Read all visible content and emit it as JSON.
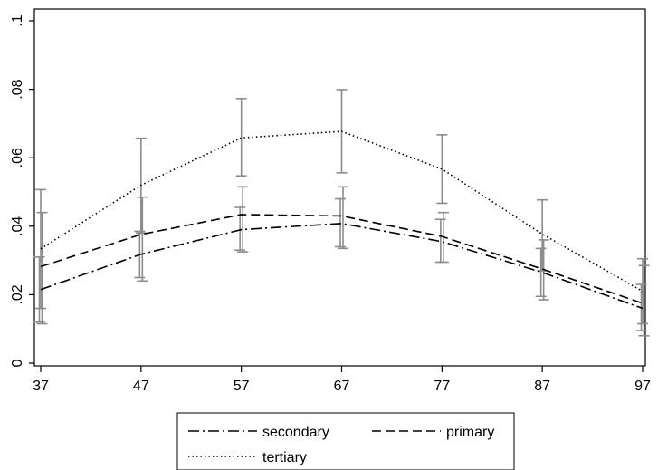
{
  "chart_data": {
    "type": "line",
    "title": "",
    "xlabel": "",
    "ylabel": "",
    "x": [
      37,
      47,
      57,
      67,
      77,
      87,
      97
    ],
    "x_tick_labels": [
      "37",
      "47",
      "57",
      "67",
      "77",
      "87",
      "97"
    ],
    "ylim": [
      0,
      0.1
    ],
    "y_ticks": [
      0,
      0.02,
      0.04,
      0.06,
      0.08,
      0.1
    ],
    "y_tick_labels": [
      "0",
      ".02",
      ".04",
      ".06",
      ".08",
      ".1"
    ],
    "grid": false,
    "legend_position": "bottom",
    "series": [
      {
        "name": "secondary",
        "line_style": "dash-dot",
        "values": [
          0.0215,
          0.0318,
          0.039,
          0.0408,
          0.0355,
          0.0265,
          0.016
        ],
        "ci_low": [
          0.012,
          0.025,
          0.033,
          0.034,
          0.0295,
          0.0195,
          0.0095
        ],
        "ci_high": [
          0.031,
          0.0385,
          0.0455,
          0.048,
          0.042,
          0.0335,
          0.023
        ]
      },
      {
        "name": "primary",
        "line_style": "dashed",
        "values": [
          0.0282,
          0.0376,
          0.0434,
          0.043,
          0.037,
          0.0275,
          0.0175
        ],
        "ci_low": [
          0.0115,
          0.024,
          0.0325,
          0.0335,
          0.0295,
          0.0185,
          0.008
        ],
        "ci_high": [
          0.044,
          0.0485,
          0.0515,
          0.0515,
          0.044,
          0.036,
          0.0285
        ]
      },
      {
        "name": "tertiary",
        "line_style": "dotted",
        "values": [
          0.0334,
          0.052,
          0.0658,
          0.0677,
          0.0567,
          0.0377,
          0.021
        ],
        "ci_low": [
          0.016,
          0.038,
          0.0547,
          0.0556,
          0.0467,
          0.027,
          0.0115
        ],
        "ci_high": [
          0.0507,
          0.0657,
          0.0773,
          0.0799,
          0.0667,
          0.0477,
          0.0305
        ]
      }
    ],
    "colors": {
      "lines": "#000000",
      "error_bars": "#8c8c8c",
      "axes": "#000000"
    }
  }
}
